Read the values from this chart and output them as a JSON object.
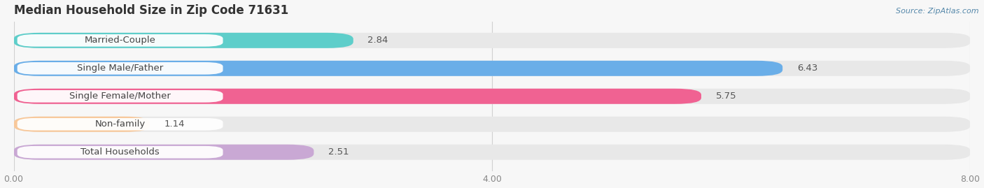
{
  "title": "Median Household Size in Zip Code 71631",
  "source": "Source: ZipAtlas.com",
  "categories": [
    "Married-Couple",
    "Single Male/Father",
    "Single Female/Mother",
    "Non-family",
    "Total Households"
  ],
  "values": [
    2.84,
    6.43,
    5.75,
    1.14,
    2.51
  ],
  "bar_colors": [
    "#5ececa",
    "#6aaee8",
    "#f06292",
    "#f8c89a",
    "#c9a8d4"
  ],
  "xlim": [
    0,
    8.0
  ],
  "xticks": [
    0.0,
    4.0,
    8.0
  ],
  "xtick_labels": [
    "0.00",
    "4.00",
    "8.00"
  ],
  "background_color": "#f7f7f7",
  "bar_bg_color": "#e8e8e8",
  "title_fontsize": 12,
  "label_fontsize": 9.5,
  "value_fontsize": 9.5,
  "figsize": [
    14.06,
    2.69
  ],
  "dpi": 100
}
